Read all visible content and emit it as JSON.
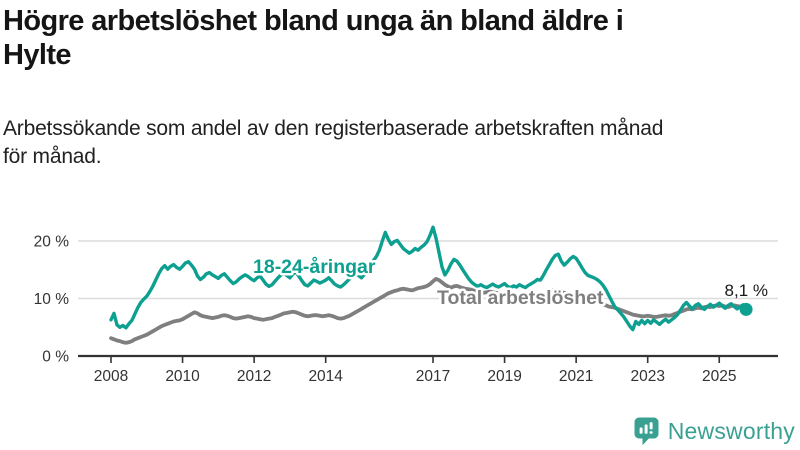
{
  "header": {
    "title_line1": "Högre arbetslöshet bland unga än bland äldre i",
    "title_line2": "Hylte",
    "subtitle_line1": "Arbetssökande som andel av den registerbaserade arbetskraften månad",
    "subtitle_line2": "för månad."
  },
  "footer": {
    "brand": "Newsworthy"
  },
  "colors": {
    "young_series": "#0DA091",
    "total_series": "#7F7F7F",
    "grid": "#DCDCDC",
    "axis": "#333333",
    "tick_text": "#333333",
    "value_text": "#1A1A1A",
    "logo": "#3AA192"
  },
  "chart_data": {
    "type": "line",
    "title": "Högre arbetslöshet bland unga än bland äldre i Hylte",
    "subtitle": "Arbetssökande som andel av den registerbaserade arbetskraften månad för månad.",
    "unit": "%",
    "grid": true,
    "legend": "inline-labels",
    "x_start_year": 2008,
    "x_step_months": 1,
    "x_ticks": [
      2008,
      2010,
      2012,
      2014,
      2017,
      2019,
      2021,
      2023,
      2025
    ],
    "y_ticks": [
      {
        "value": 0,
        "label": "0 %"
      },
      {
        "value": 10,
        "label": "10 %"
      },
      {
        "value": 20,
        "label": "20 %"
      }
    ],
    "ylim": [
      0,
      23
    ],
    "end_label": {
      "text": "8,1 %",
      "series": "18-24-åringar",
      "value": 8.1
    },
    "series": [
      {
        "name": "Total arbetslöshet",
        "color": "#7F7F7F",
        "values": [
          3.1,
          2.9,
          2.7,
          2.6,
          2.4,
          2.3,
          2.4,
          2.6,
          2.9,
          3.1,
          3.3,
          3.5,
          3.7,
          4.0,
          4.3,
          4.6,
          4.9,
          5.2,
          5.4,
          5.6,
          5.8,
          6.0,
          6.1,
          6.2,
          6.4,
          6.7,
          7.0,
          7.3,
          7.6,
          7.4,
          7.1,
          6.9,
          6.8,
          6.7,
          6.6,
          6.7,
          6.8,
          7.0,
          7.1,
          7.0,
          6.8,
          6.6,
          6.5,
          6.6,
          6.7,
          6.8,
          6.9,
          6.8,
          6.6,
          6.5,
          6.4,
          6.3,
          6.4,
          6.5,
          6.6,
          6.8,
          7.0,
          7.2,
          7.4,
          7.5,
          7.6,
          7.7,
          7.6,
          7.4,
          7.2,
          7.0,
          6.9,
          7.0,
          7.1,
          7.1,
          7.0,
          6.9,
          7.0,
          7.1,
          7.0,
          6.8,
          6.6,
          6.5,
          6.6,
          6.8,
          7.0,
          7.3,
          7.6,
          7.9,
          8.2,
          8.5,
          8.8,
          9.1,
          9.4,
          9.7,
          10.0,
          10.3,
          10.6,
          10.9,
          11.1,
          11.3,
          11.4,
          11.6,
          11.7,
          11.6,
          11.5,
          11.4,
          11.6,
          11.8,
          11.9,
          12.0,
          12.2,
          12.5,
          13.0,
          13.4,
          13.2,
          12.8,
          12.4,
          12.1,
          11.9,
          12.1,
          12.2,
          12.0,
          11.8,
          11.7,
          11.6,
          11.5,
          11.3,
          11.2,
          11.1,
          11.0,
          11.1,
          11.2,
          11.1,
          11.0,
          10.9,
          10.8,
          10.7,
          10.6,
          10.5,
          10.4,
          10.3,
          10.2,
          10.3,
          10.4,
          10.3,
          10.2,
          10.1,
          10.2,
          10.2,
          10.5,
          10.9,
          11.2,
          11.4,
          11.5,
          11.3,
          11.1,
          11.0,
          10.9,
          10.8,
          10.7,
          10.6,
          10.4,
          10.2,
          10.0,
          9.8,
          9.6,
          9.5,
          9.3,
          9.2,
          9.0,
          8.8,
          8.6,
          8.5,
          8.4,
          8.2,
          8.0,
          7.8,
          7.6,
          7.4,
          7.2,
          7.1,
          7.0,
          6.9,
          6.9,
          7.0,
          6.9,
          6.8,
          6.8,
          6.9,
          7.0,
          7.1,
          7.0,
          7.1,
          7.3,
          7.5,
          7.7,
          7.9,
          8.1,
          8.2,
          8.1,
          8.3,
          8.4,
          8.3,
          8.5,
          8.6,
          8.5,
          8.7,
          8.8,
          8.7,
          8.8,
          8.6,
          8.5,
          8.7,
          8.8,
          8.7,
          8.6,
          8.5,
          8.4
        ]
      },
      {
        "name": "18-24-åringar",
        "color": "#0DA091",
        "values": [
          6.3,
          7.4,
          5.4,
          5.0,
          5.3,
          4.9,
          5.6,
          6.2,
          7.3,
          8.4,
          9.3,
          9.9,
          10.4,
          11.2,
          12.1,
          13.2,
          14.3,
          15.2,
          15.7,
          15.1,
          15.6,
          15.9,
          15.4,
          15.1,
          15.6,
          16.2,
          16.4,
          15.8,
          15.1,
          13.9,
          13.3,
          13.7,
          14.3,
          14.5,
          14.1,
          13.8,
          13.5,
          14.0,
          14.3,
          13.7,
          13.1,
          12.6,
          12.9,
          13.4,
          13.8,
          14.1,
          13.8,
          13.4,
          13.1,
          13.6,
          13.9,
          13.2,
          12.5,
          12.1,
          12.4,
          13.0,
          13.6,
          14.1,
          14.4,
          14.0,
          13.6,
          14.3,
          14.6,
          13.9,
          13.1,
          12.4,
          12.2,
          12.7,
          13.2,
          13.0,
          12.7,
          12.9,
          13.2,
          13.6,
          13.1,
          12.5,
          12.2,
          12.0,
          12.4,
          12.9,
          13.4,
          13.9,
          14.4,
          14.0,
          13.6,
          14.2,
          15.0,
          15.8,
          16.6,
          17.3,
          18.4,
          20.0,
          21.5,
          20.3,
          19.4,
          19.9,
          20.1,
          19.4,
          18.7,
          18.3,
          17.9,
          18.2,
          18.7,
          18.4,
          18.9,
          19.3,
          19.9,
          21.0,
          22.4,
          20.5,
          18.0,
          15.5,
          14.1,
          14.9,
          16.0,
          16.8,
          16.5,
          15.8,
          15.0,
          14.2,
          13.4,
          12.8,
          12.4,
          12.1,
          12.4,
          12.1,
          11.9,
          12.2,
          12.5,
          12.2,
          12.0,
          12.3,
          12.6,
          12.1,
          11.9,
          12.2,
          12.0,
          12.4,
          12.1,
          11.9,
          12.3,
          12.6,
          12.9,
          13.3,
          13.2,
          14.0,
          15.0,
          15.9,
          16.8,
          17.5,
          17.7,
          16.5,
          15.8,
          16.3,
          16.9,
          17.3,
          17.0,
          16.2,
          15.3,
          14.5,
          14.0,
          13.8,
          13.6,
          13.3,
          12.9,
          12.3,
          11.5,
          10.5,
          9.5,
          8.5,
          8.0,
          7.4,
          6.8,
          6.0,
          5.2,
          4.6,
          6.0,
          5.5,
          6.2,
          5.6,
          6.2,
          5.7,
          6.3,
          5.9,
          5.5,
          6.0,
          6.4,
          5.9,
          6.3,
          6.7,
          7.2,
          8.0,
          8.8,
          9.3,
          8.7,
          8.2,
          8.8,
          9.1,
          8.5,
          8.1,
          8.6,
          9.0,
          8.5,
          8.8,
          9.2,
          8.7,
          8.3,
          8.8,
          9.1,
          8.6,
          8.2,
          8.6,
          8.9,
          8.1
        ]
      }
    ]
  }
}
